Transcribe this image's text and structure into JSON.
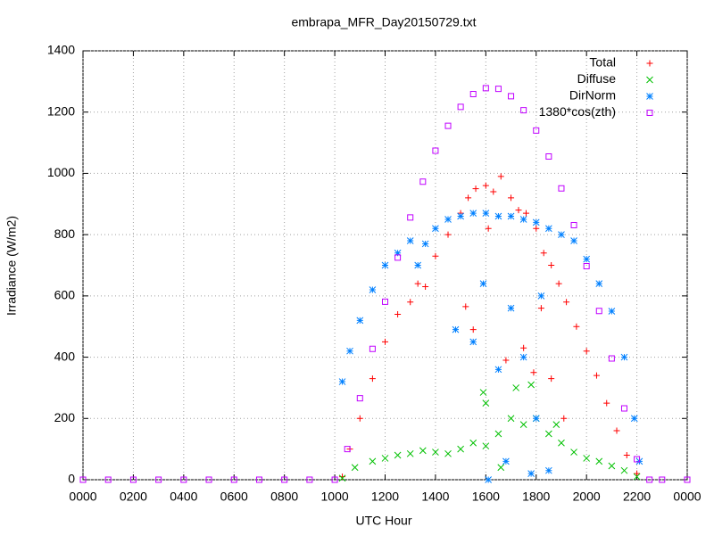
{
  "chart_data": {
    "type": "scatter",
    "title": "embrapa_MFR_Day20150729.txt",
    "x_label": "UTC Hour",
    "y_label": "Irradiance (W/m2)",
    "xlim": [
      0,
      24
    ],
    "ylim": [
      0,
      1400
    ],
    "xticks": [
      {
        "value": 0,
        "label": "0000"
      },
      {
        "value": 2,
        "label": "0200"
      },
      {
        "value": 4,
        "label": "0400"
      },
      {
        "value": 6,
        "label": "0600"
      },
      {
        "value": 8,
        "label": "0800"
      },
      {
        "value": 10,
        "label": "1000"
      },
      {
        "value": 12,
        "label": "1200"
      },
      {
        "value": 14,
        "label": "1400"
      },
      {
        "value": 16,
        "label": "1600"
      },
      {
        "value": 18,
        "label": "1800"
      },
      {
        "value": 20,
        "label": "2000"
      },
      {
        "value": 22,
        "label": "2200"
      },
      {
        "value": 24,
        "label": "0000"
      }
    ],
    "yticks": [
      0,
      200,
      400,
      600,
      800,
      1000,
      1200,
      1400
    ],
    "grid": true,
    "legend": "top-right",
    "series": [
      {
        "name": "Total",
        "color": "#ff0000",
        "marker": "plus",
        "x": [
          10.3,
          10.6,
          11,
          11.5,
          12,
          12.5,
          13,
          13.3,
          13.6,
          14,
          14.5,
          15,
          15.3,
          15.6,
          16,
          16.3,
          16.6,
          17,
          17.3,
          17.6,
          18,
          18.3,
          18.6,
          18.9,
          19.2,
          19.6,
          20,
          20.4,
          20.8,
          21.2,
          21.6,
          22,
          15.2,
          15.5,
          16.8,
          17.5,
          17.9,
          18.6,
          19.1,
          18.2,
          16.1
        ],
        "values": [
          10,
          100,
          200,
          330,
          450,
          540,
          580,
          640,
          630,
          730,
          800,
          870,
          920,
          950,
          960,
          940,
          990,
          920,
          880,
          870,
          820,
          740,
          700,
          640,
          580,
          500,
          420,
          340,
          250,
          160,
          80,
          20,
          565,
          490,
          390,
          430,
          350,
          330,
          200,
          560,
          820
        ]
      },
      {
        "name": "Diffuse",
        "color": "#00c000",
        "marker": "cross",
        "x": [
          10.3,
          10.8,
          11.5,
          12,
          12.5,
          13,
          13.5,
          14,
          14.5,
          15,
          15.5,
          16,
          16.5,
          17,
          17.5,
          18,
          18.5,
          19,
          19.5,
          20,
          20.5,
          21,
          21.5,
          22,
          15.9,
          16,
          17.2,
          17.8,
          18.8,
          16.6
        ],
        "values": [
          5,
          40,
          60,
          70,
          80,
          85,
          95,
          90,
          85,
          100,
          120,
          110,
          150,
          200,
          180,
          200,
          150,
          120,
          90,
          70,
          60,
          45,
          30,
          10,
          285,
          250,
          300,
          310,
          180,
          40
        ]
      },
      {
        "name": "DirNorm",
        "color": "#0080ff",
        "marker": "star",
        "x": [
          10.3,
          10.6,
          11,
          11.5,
          12,
          12.5,
          13,
          13.3,
          13.6,
          14,
          14.5,
          15,
          15.5,
          16,
          16.5,
          17,
          17.5,
          18,
          18.5,
          19,
          19.5,
          20,
          20.5,
          21,
          21.5,
          21.9,
          22.1,
          14.8,
          15.5,
          15.9,
          16.1,
          16.5,
          17,
          17.5,
          18,
          18.5,
          18.2,
          17.8,
          16.8
        ],
        "values": [
          320,
          420,
          520,
          620,
          700,
          740,
          780,
          700,
          770,
          820,
          850,
          860,
          870,
          870,
          860,
          860,
          850,
          840,
          820,
          800,
          780,
          720,
          640,
          550,
          400,
          200,
          60,
          490,
          450,
          640,
          0,
          360,
          560,
          400,
          200,
          30,
          600,
          20,
          60
        ]
      },
      {
        "name": "1380*cos(zth)",
        "color": "#c000ff",
        "marker": "square",
        "x": [
          0,
          1,
          2,
          3,
          4,
          5,
          6,
          7,
          8,
          9,
          10,
          10.5,
          11,
          11.5,
          12,
          12.5,
          13,
          13.5,
          14,
          14.5,
          15,
          15.5,
          16,
          16.5,
          17,
          17.5,
          18,
          18.5,
          19,
          19.5,
          20,
          20.5,
          21,
          21.5,
          22,
          22.5,
          23,
          24
        ],
        "values": [
          0,
          0,
          0,
          0,
          0,
          0,
          0,
          0,
          0,
          0,
          0,
          100,
          266,
          427,
          581,
          725,
          856,
          973,
          1074,
          1155,
          1217,
          1259,
          1278,
          1276,
          1252,
          1206,
          1140,
          1055,
          951,
          831,
          697,
          551,
          396,
          233,
          67,
          0,
          0,
          0
        ]
      }
    ]
  }
}
